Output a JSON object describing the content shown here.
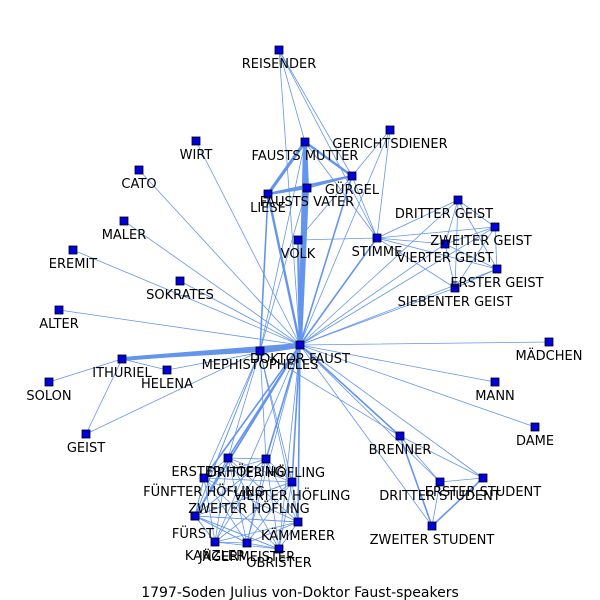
{
  "caption": "1797-Soden  Julius  von-Doktor  Faust-speakers",
  "colors": {
    "node": "#0000DD",
    "edge": "#6495ED"
  },
  "nodes": [
    {
      "id": "REISENDER",
      "label": "REISENDER"
    },
    {
      "id": "GERICHTSDIENER",
      "label": "GERICHTSDIENER"
    },
    {
      "id": "WIRT",
      "label": "WIRT"
    },
    {
      "id": "FAUSTS_MUTTER",
      "label": "FAUSTS MUTTER"
    },
    {
      "id": "CATO",
      "label": "CATO"
    },
    {
      "id": "GURGEL",
      "label": "GÜRGEL"
    },
    {
      "id": "FAUSTS_VATER",
      "label": "FAUSTS VATER"
    },
    {
      "id": "LIESE",
      "label": "LIESE"
    },
    {
      "id": "MALER",
      "label": "MALER"
    },
    {
      "id": "DRITTER_GEIST",
      "label": "DRITTER GEIST"
    },
    {
      "id": "ZWEITER_GEIST",
      "label": "ZWEITER GEIST"
    },
    {
      "id": "EREMIT",
      "label": "EREMIT"
    },
    {
      "id": "VOLK",
      "label": "VOLK"
    },
    {
      "id": "STIMME",
      "label": "STIMME"
    },
    {
      "id": "VIERTER_GEIST",
      "label": "VIERTER GEIST"
    },
    {
      "id": "ERSTER_GEIST",
      "label": "ERSTER GEIST"
    },
    {
      "id": "SOKRATES",
      "label": "SOKRATES"
    },
    {
      "id": "SIEBENTER_GEIST",
      "label": "SIEBENTER GEIST"
    },
    {
      "id": "ALTER",
      "label": "ALTER"
    },
    {
      "id": "MADCHEN",
      "label": "MÄDCHEN"
    },
    {
      "id": "DOKTOR_FAUST",
      "label": "DOKTOR FAUST"
    },
    {
      "id": "MEPHISTOPHELES",
      "label": "MEPHISTOPHELES"
    },
    {
      "id": "ITHURIEL",
      "label": "ITHURIEL"
    },
    {
      "id": "HELENA",
      "label": "HELENA"
    },
    {
      "id": "SOLON",
      "label": "SOLON"
    },
    {
      "id": "MANN",
      "label": "MANN"
    },
    {
      "id": "DAME",
      "label": "DAME"
    },
    {
      "id": "GEIST",
      "label": "GEIST"
    },
    {
      "id": "BRENNER",
      "label": "BRENNER"
    },
    {
      "id": "ERSTER_HOFLING",
      "label": "ERSTER HÖFLING"
    },
    {
      "id": "DRITTER_HOFLING",
      "label": "DRITTER HÖFLING"
    },
    {
      "id": "FUNFTER_HOFLING",
      "label": "FÜNFTER HÖFLING"
    },
    {
      "id": "VIERTER_HOFLING",
      "label": "VIERTER HÖFLING"
    },
    {
      "id": "ERSTER_STUDENT",
      "label": "ERSTER STUDENT"
    },
    {
      "id": "DRITTER_STUDENT",
      "label": "DRITTER STUDENT"
    },
    {
      "id": "ZWEITER_HOFLING",
      "label": "ZWEITER HÖFLING"
    },
    {
      "id": "FURST",
      "label": "FÜRST"
    },
    {
      "id": "KAMMERER",
      "label": "KÄMMERER"
    },
    {
      "id": "ZWEITER_STUDENT",
      "label": "ZWEITER STUDENT"
    },
    {
      "id": "KANZLER",
      "label": "KANZLER"
    },
    {
      "id": "JAGERMEISTER",
      "label": "JÄGERMEISTER"
    },
    {
      "id": "OBRISTER",
      "label": "OBRISTER"
    }
  ],
  "edges": [
    [
      "DOKTOR_FAUST",
      "MEPHISTOPHELES",
      7
    ],
    [
      "DOKTOR_FAUST",
      "ITHURIEL",
      5
    ],
    [
      "MEPHISTOPHELES",
      "ITHURIEL",
      3
    ],
    [
      "DOKTOR_FAUST",
      "FAUSTS_MUTTER",
      5
    ],
    [
      "DOKTOR_FAUST",
      "FAUSTS_VATER",
      5
    ],
    [
      "DOKTOR_FAUST",
      "LIESE",
      3
    ],
    [
      "DOKTOR_FAUST",
      "VOLK",
      3
    ],
    [
      "DOKTOR_FAUST",
      "GURGEL",
      2
    ],
    [
      "FAUSTS_MUTTER",
      "FAUSTS_VATER",
      5
    ],
    [
      "FAUSTS_MUTTER",
      "LIESE",
      4
    ],
    [
      "FAUSTS_VATER",
      "LIESE",
      3
    ],
    [
      "LIESE",
      "GURGEL",
      3
    ],
    [
      "FAUSTS_MUTTER",
      "GURGEL",
      3
    ],
    [
      "FAUSTS_VATER",
      "GURGEL",
      2
    ],
    [
      "MEPHISTOPHELES",
      "LIESE",
      2
    ],
    [
      "MEPHISTOPHELES",
      "FAUSTS_MUTTER",
      1
    ],
    [
      "MEPHISTOPHELES",
      "FAUSTS_VATER",
      1
    ],
    [
      "DOKTOR_FAUST",
      "REISENDER",
      1
    ],
    [
      "REISENDER",
      "FAUSTS_MUTTER",
      1
    ],
    [
      "REISENDER",
      "GURGEL",
      1
    ],
    [
      "REISENDER",
      "STIMME",
      1
    ],
    [
      "DOKTOR_FAUST",
      "GERICHTSDIENER",
      1
    ],
    [
      "GERICHTSDIENER",
      "GURGEL",
      1
    ],
    [
      "GERICHTSDIENER",
      "STIMME",
      1
    ],
    [
      "DOKTOR_FAUST",
      "WIRT",
      1
    ],
    [
      "DOKTOR_FAUST",
      "CATO",
      1
    ],
    [
      "DOKTOR_FAUST",
      "MALER",
      1
    ],
    [
      "DOKTOR_FAUST",
      "EREMIT",
      1
    ],
    [
      "DOKTOR_FAUST",
      "SOKRATES",
      1
    ],
    [
      "DOKTOR_FAUST",
      "ALTER",
      1
    ],
    [
      "DOKTOR_FAUST",
      "HELENA",
      1
    ],
    [
      "DOKTOR_FAUST",
      "MADCHEN",
      1
    ],
    [
      "DOKTOR_FAUST",
      "MANN",
      1
    ],
    [
      "DOKTOR_FAUST",
      "DAME",
      1
    ],
    [
      "DOKTOR_FAUST",
      "BRENNER",
      2
    ],
    [
      "DOKTOR_FAUST",
      "STIMME",
      2
    ],
    [
      "VOLK",
      "STIMME",
      1
    ],
    [
      "VOLK",
      "GURGEL",
      1
    ],
    [
      "STIMME",
      "GURGEL",
      1
    ],
    [
      "STIMME",
      "FAUSTS_MUTTER",
      1
    ],
    [
      "STIMME",
      "DRITTER_GEIST",
      1
    ],
    [
      "STIMME",
      "ZWEITER_GEIST",
      1
    ],
    [
      "STIMME",
      "VIERTER_GEIST",
      1
    ],
    [
      "STIMME",
      "ERSTER_GEIST",
      1
    ],
    [
      "STIMME",
      "SIEBENTER_GEIST",
      1
    ],
    [
      "DOKTOR_FAUST",
      "DRITTER_GEIST",
      1
    ],
    [
      "DOKTOR_FAUST",
      "ZWEITER_GEIST",
      1
    ],
    [
      "DOKTOR_FAUST",
      "VIERTER_GEIST",
      1
    ],
    [
      "DOKTOR_FAUST",
      "ERSTER_GEIST",
      1
    ],
    [
      "DOKTOR_FAUST",
      "SIEBENTER_GEIST",
      1
    ],
    [
      "DRITTER_GEIST",
      "ZWEITER_GEIST",
      1
    ],
    [
      "DRITTER_GEIST",
      "VIERTER_GEIST",
      1
    ],
    [
      "DRITTER_GEIST",
      "ERSTER_GEIST",
      1
    ],
    [
      "DRITTER_GEIST",
      "SIEBENTER_GEIST",
      1
    ],
    [
      "ZWEITER_GEIST",
      "VIERTER_GEIST",
      1
    ],
    [
      "ZWEITER_GEIST",
      "ERSTER_GEIST",
      1
    ],
    [
      "ZWEITER_GEIST",
      "SIEBENTER_GEIST",
      1
    ],
    [
      "VIERTER_GEIST",
      "ERSTER_GEIST",
      1
    ],
    [
      "VIERTER_GEIST",
      "SIEBENTER_GEIST",
      1
    ],
    [
      "ERSTER_GEIST",
      "SIEBENTER_GEIST",
      1
    ],
    [
      "ITHURIEL",
      "SOLON",
      1
    ],
    [
      "ITHURIEL",
      "GEIST",
      1
    ],
    [
      "ITHURIEL",
      "HELENA",
      1
    ],
    [
      "MEPHISTOPHELES",
      "GEIST",
      1
    ],
    [
      "MEPHISTOPHELES",
      "BRENNER",
      1
    ],
    [
      "BRENNER",
      "ERSTER_STUDENT",
      1
    ],
    [
      "BRENNER",
      "DRITTER_STUDENT",
      1
    ],
    [
      "BRENNER",
      "ZWEITER_STUDENT",
      2
    ],
    [
      "ERSTER_STUDENT",
      "DRITTER_STUDENT",
      1
    ],
    [
      "ERSTER_STUDENT",
      "ZWEITER_STUDENT",
      2
    ],
    [
      "DRITTER_STUDENT",
      "ZWEITER_STUDENT",
      1
    ],
    [
      "DOKTOR_FAUST",
      "ERSTER_STUDENT",
      1
    ],
    [
      "DOKTOR_FAUST",
      "DRITTER_STUDENT",
      1
    ],
    [
      "DOKTOR_FAUST",
      "ZWEITER_STUDENT",
      1
    ],
    [
      "DOKTOR_FAUST",
      "ERSTER_HOFLING",
      2
    ],
    [
      "DOKTOR_FAUST",
      "DRITTER_HOFLING",
      2
    ],
    [
      "DOKTOR_FAUST",
      "FUNFTER_HOFLING",
      2
    ],
    [
      "DOKTOR_FAUST",
      "VIERTER_HOFLING",
      2
    ],
    [
      "DOKTOR_FAUST",
      "ZWEITER_HOFLING",
      2
    ],
    [
      "DOKTOR_FAUST",
      "FURST",
      2
    ],
    [
      "DOKTOR_FAUST",
      "KAMMERER",
      2
    ],
    [
      "DOKTOR_FAUST",
      "KANZLER",
      1
    ],
    [
      "DOKTOR_FAUST",
      "JAGERMEISTER",
      1
    ],
    [
      "DOKTOR_FAUST",
      "OBRISTER",
      1
    ],
    [
      "MEPHISTOPHELES",
      "ERSTER_HOFLING",
      1
    ],
    [
      "MEPHISTOPHELES",
      "DRITTER_HOFLING",
      1
    ],
    [
      "MEPHISTOPHELES",
      "FUNFTER_HOFLING",
      1
    ],
    [
      "MEPHISTOPHELES",
      "VIERTER_HOFLING",
      1
    ],
    [
      "MEPHISTOPHELES",
      "ZWEITER_HOFLING",
      1
    ],
    [
      "MEPHISTOPHELES",
      "FURST",
      1
    ],
    [
      "MEPHISTOPHELES",
      "KAMMERER",
      1
    ],
    [
      "ERSTER_HOFLING",
      "DRITTER_HOFLING",
      1
    ],
    [
      "ERSTER_HOFLING",
      "FUNFTER_HOFLING",
      1
    ],
    [
      "ERSTER_HOFLING",
      "VIERTER_HOFLING",
      1
    ],
    [
      "ERSTER_HOFLING",
      "ZWEITER_HOFLING",
      1
    ],
    [
      "ERSTER_HOFLING",
      "FURST",
      1
    ],
    [
      "ERSTER_HOFLING",
      "KAMMERER",
      1
    ],
    [
      "ERSTER_HOFLING",
      "KANZLER",
      1
    ],
    [
      "ERSTER_HOFLING",
      "JAGERMEISTER",
      1
    ],
    [
      "ERSTER_HOFLING",
      "OBRISTER",
      1
    ],
    [
      "DRITTER_HOFLING",
      "FUNFTER_HOFLING",
      1
    ],
    [
      "DRITTER_HOFLING",
      "VIERTER_HOFLING",
      1
    ],
    [
      "DRITTER_HOFLING",
      "ZWEITER_HOFLING",
      1
    ],
    [
      "DRITTER_HOFLING",
      "FURST",
      1
    ],
    [
      "DRITTER_HOFLING",
      "KAMMERER",
      1
    ],
    [
      "DRITTER_HOFLING",
      "KANZLER",
      1
    ],
    [
      "DRITTER_HOFLING",
      "JAGERMEISTER",
      1
    ],
    [
      "DRITTER_HOFLING",
      "OBRISTER",
      1
    ],
    [
      "FUNFTER_HOFLING",
      "VIERTER_HOFLING",
      1
    ],
    [
      "FUNFTER_HOFLING",
      "ZWEITER_HOFLING",
      1
    ],
    [
      "FUNFTER_HOFLING",
      "FURST",
      1
    ],
    [
      "FUNFTER_HOFLING",
      "KAMMERER",
      1
    ],
    [
      "FUNFTER_HOFLING",
      "KANZLER",
      1
    ],
    [
      "FUNFTER_HOFLING",
      "JAGERMEISTER",
      1
    ],
    [
      "FUNFTER_HOFLING",
      "OBRISTER",
      1
    ],
    [
      "VIERTER_HOFLING",
      "ZWEITER_HOFLING",
      1
    ],
    [
      "VIERTER_HOFLING",
      "FURST",
      1
    ],
    [
      "VIERTER_HOFLING",
      "KAMMERER",
      1
    ],
    [
      "VIERTER_HOFLING",
      "KANZLER",
      1
    ],
    [
      "VIERTER_HOFLING",
      "JAGERMEISTER",
      1
    ],
    [
      "VIERTER_HOFLING",
      "OBRISTER",
      1
    ],
    [
      "ZWEITER_HOFLING",
      "FURST",
      1
    ],
    [
      "ZWEITER_HOFLING",
      "KAMMERER",
      1
    ],
    [
      "ZWEITER_HOFLING",
      "KANZLER",
      1
    ],
    [
      "ZWEITER_HOFLING",
      "JAGERMEISTER",
      1
    ],
    [
      "ZWEITER_HOFLING",
      "OBRISTER",
      1
    ],
    [
      "FURST",
      "KAMMERER",
      1
    ],
    [
      "FURST",
      "KANZLER",
      1
    ],
    [
      "FURST",
      "JAGERMEISTER",
      1
    ],
    [
      "FURST",
      "OBRISTER",
      1
    ],
    [
      "KAMMERER",
      "KANZLER",
      1
    ],
    [
      "KAMMERER",
      "JAGERMEISTER",
      1
    ],
    [
      "KAMMERER",
      "OBRISTER",
      1
    ],
    [
      "KANZLER",
      "JAGERMEISTER",
      1
    ],
    [
      "KANZLER",
      "OBRISTER",
      1
    ],
    [
      "JAGERMEISTER",
      "OBRISTER",
      1
    ]
  ]
}
